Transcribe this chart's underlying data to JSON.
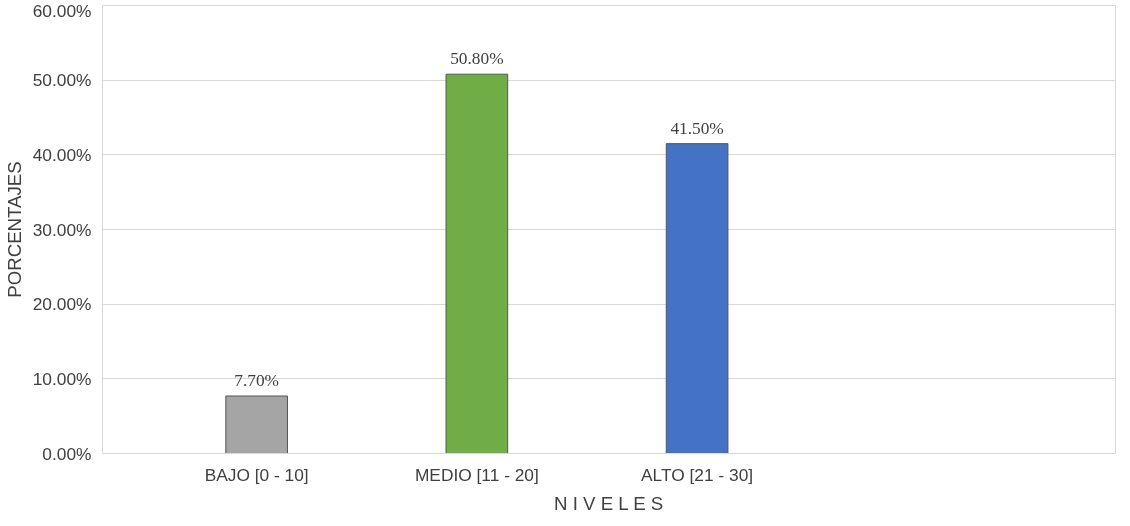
{
  "chart_data": {
    "type": "bar",
    "xlabel": "N I V E L E S",
    "ylabel": "PORCENTAJES",
    "categories": [
      "BAJO [0 - 10]",
      "MEDIO [11 - 20]",
      "ALTO [21 - 30]"
    ],
    "values": [
      7.7,
      50.8,
      41.5
    ],
    "colors": [
      "#a5a5a5",
      "#70ad47",
      "#4472c4"
    ],
    "value_labels": [
      "7.70%",
      "50.80%",
      "41.50%"
    ],
    "ylim": [
      0,
      60
    ],
    "yticks": [
      {
        "value": 0,
        "label": "0.00%"
      },
      {
        "value": 10,
        "label": "10.00%"
      },
      {
        "value": 20,
        "label": "20.00%"
      },
      {
        "value": 30,
        "label": "30.00%"
      },
      {
        "value": 40,
        "label": "40.00%"
      },
      {
        "value": 50,
        "label": "50.00%"
      },
      {
        "value": 60,
        "label": "60.00%"
      }
    ],
    "grid": "y"
  }
}
